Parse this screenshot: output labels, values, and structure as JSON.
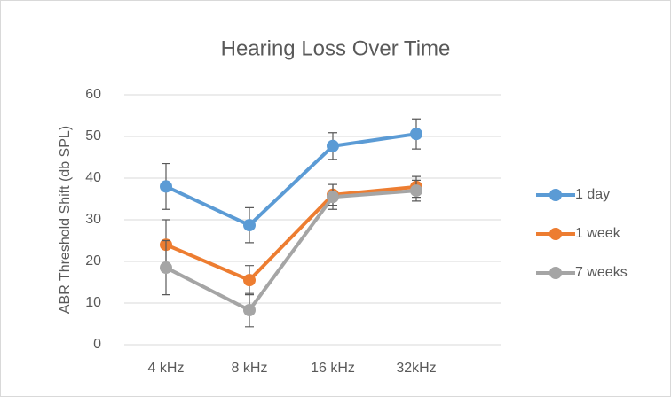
{
  "chart_data": {
    "type": "line",
    "title": "Hearing Loss Over Time",
    "y_label": "ABR Threshold Shift (db SPL)",
    "categories": [
      "4 kHz",
      "8 kHz",
      "16 kHz",
      "32kHz"
    ],
    "series": [
      {
        "name": "1 day",
        "color": "#5b9bd5",
        "values": [
          38,
          28.7,
          47.7,
          50.6
        ],
        "errors": [
          5.5,
          4.2,
          3.2,
          3.6
        ]
      },
      {
        "name": "1 week",
        "color": "#ed7d31",
        "values": [
          24,
          15.5,
          36,
          37.9
        ],
        "errors": [
          6,
          3.5,
          2.5,
          2.5
        ]
      },
      {
        "name": "7 weeks",
        "color": "#a5a5a5",
        "values": [
          18.5,
          8.3,
          35.5,
          37
        ],
        "errors": [
          6.5,
          4,
          3,
          2.5
        ]
      }
    ],
    "ylim": [
      0,
      60
    ],
    "yticks": [
      0,
      10,
      20,
      30,
      40,
      50,
      60
    ],
    "grid": true,
    "legend": "right"
  }
}
